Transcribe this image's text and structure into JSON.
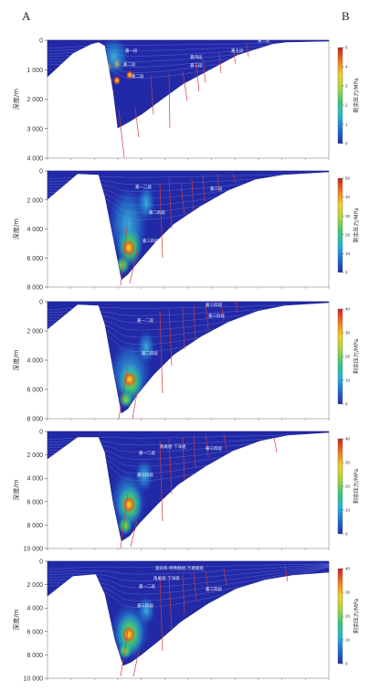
{
  "headers": {
    "a": "A",
    "b": "B"
  },
  "axis": {
    "ylabel": "深度/m",
    "colorbar_label": "剩余压力/MPa"
  },
  "colorbar_colors": [
    "#1c2fa8",
    "#1f6fd6",
    "#22b7d4",
    "#39c77a",
    "#a8d53a",
    "#f2d21f",
    "#f07a1c",
    "#cc1d1d"
  ],
  "panels": [
    {
      "yticks": [
        "0",
        "1 000",
        "2 000",
        "3 000",
        "4 000"
      ],
      "cb_ticks": [
        "5",
        "4",
        "3",
        "2",
        "1",
        "0"
      ],
      "labels": [
        "嘉一段",
        "嘉二段",
        "嘉二段",
        "嘉三段",
        "嘉四段",
        "嘉五段",
        "嘉二段"
      ]
    },
    {
      "yticks": [
        "0",
        "2 000",
        "4 000",
        "6 000",
        "8 000"
      ],
      "cb_ticks": [
        "50",
        "40",
        "30",
        "20",
        "10",
        "0"
      ],
      "labels": [
        "嘉一二段",
        "嘉三段",
        "嘉二四段",
        "嘉三四段"
      ]
    },
    {
      "yticks": [
        "0",
        "2 000",
        "4 000",
        "6 000",
        "8 000"
      ],
      "cb_ticks": [
        "40",
        "30",
        "20",
        "10",
        "0"
      ],
      "labels": [
        "嘉一二段",
        "嘉三四段",
        "嘉三四段",
        "嘉二四段"
      ]
    },
    {
      "yticks": [
        "0",
        "2 000",
        "4 000",
        "6 000",
        "8 000",
        "10 000"
      ],
      "cb_ticks": [
        "40",
        "30",
        "20",
        "10",
        "0"
      ],
      "labels": [
        "角尾组-下洋组",
        "嘉一二段",
        "嘉三四段",
        "嘉三四段"
      ]
    },
    {
      "yticks": [
        "0",
        "2 000",
        "4 000",
        "6 000",
        "8 000",
        "10 000"
      ],
      "cb_ticks": [
        "40",
        "30",
        "20",
        "10",
        "0"
      ],
      "labels": [
        "第四系-韩粤群组-万塘南组",
        "角尾组-下洋组",
        "嘉一二段",
        "嘉三四段",
        "嘉三四段"
      ]
    }
  ]
}
